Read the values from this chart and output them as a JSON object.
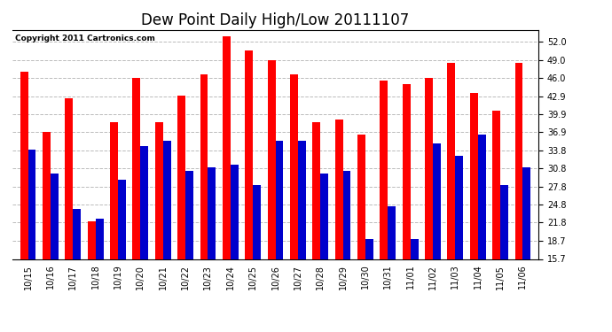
{
  "title": "Dew Point Daily High/Low 20111107",
  "copyright": "Copyright 2011 Cartronics.com",
  "labels": [
    "10/15",
    "10/16",
    "10/17",
    "10/18",
    "10/19",
    "10/20",
    "10/21",
    "10/22",
    "10/23",
    "10/24",
    "10/25",
    "10/26",
    "10/27",
    "10/28",
    "10/29",
    "10/30",
    "10/31",
    "11/01",
    "11/02",
    "11/03",
    "11/04",
    "11/05",
    "11/06"
  ],
  "highs": [
    47.0,
    37.0,
    42.5,
    22.0,
    38.5,
    46.0,
    38.5,
    43.0,
    46.5,
    53.0,
    50.5,
    49.0,
    46.5,
    38.5,
    39.0,
    36.5,
    45.5,
    45.0,
    46.0,
    48.5,
    43.5,
    40.5,
    48.5
  ],
  "lows": [
    34.0,
    30.0,
    24.0,
    22.5,
    29.0,
    34.5,
    35.5,
    30.5,
    31.0,
    31.5,
    28.0,
    35.5,
    35.5,
    30.0,
    30.5,
    19.0,
    24.5,
    19.0,
    35.0,
    33.0,
    36.5,
    28.0,
    31.0
  ],
  "high_color": "#ff0000",
  "low_color": "#0000cc",
  "bg_color": "#ffffff",
  "grid_color": "#bbbbbb",
  "ymin": 15.7,
  "ymax": 54.0,
  "yticks": [
    15.7,
    18.7,
    21.8,
    24.8,
    27.8,
    30.8,
    33.8,
    36.9,
    39.9,
    42.9,
    46.0,
    49.0,
    52.0
  ],
  "title_fontsize": 12,
  "copyright_fontsize": 6.5,
  "tick_fontsize": 7.0,
  "bar_width": 0.35
}
